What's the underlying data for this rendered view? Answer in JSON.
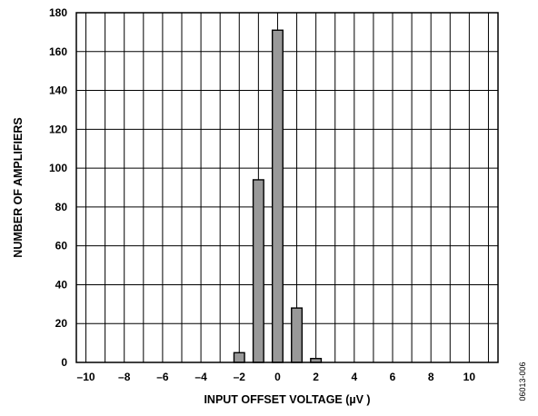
{
  "chart_data": {
    "type": "bar",
    "xlabel": "INPUT OFFSET VOLTAGE (µV )",
    "ylabel": "NUMBER OF AMPLIFIERS",
    "xlim": [
      -10.5,
      11.5
    ],
    "ylim": [
      0,
      180
    ],
    "x_ticks": [
      "–10",
      "–8",
      "–6",
      "–4",
      "–2",
      "0",
      "2",
      "4",
      "6",
      "8",
      "10"
    ],
    "x_tick_values": [
      -10,
      -8,
      -6,
      -4,
      -2,
      0,
      2,
      4,
      6,
      8,
      10
    ],
    "y_ticks": [
      "0",
      "20",
      "40",
      "60",
      "80",
      "100",
      "120",
      "140",
      "160",
      "180"
    ],
    "y_tick_values": [
      0,
      20,
      40,
      60,
      80,
      100,
      120,
      140,
      160,
      180
    ],
    "grid": true,
    "bar_color": "#999999",
    "bars": [
      {
        "x": -2,
        "value": 5
      },
      {
        "x": -1,
        "value": 94
      },
      {
        "x": 0,
        "value": 171
      },
      {
        "x": 1,
        "value": 28
      },
      {
        "x": 2,
        "value": 2
      }
    ]
  },
  "side_code": "06013-006"
}
